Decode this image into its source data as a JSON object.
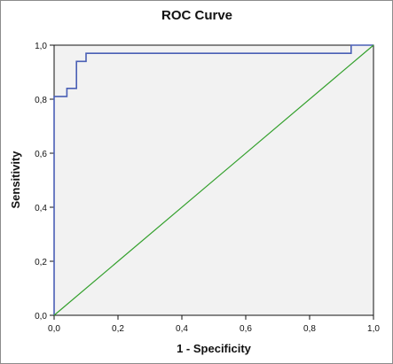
{
  "chart_data": {
    "type": "line",
    "title": "ROC Curve",
    "xlabel": "1 - Specificity",
    "ylabel": "Sensitivity",
    "xlim": [
      0.0,
      1.0
    ],
    "ylim": [
      0.0,
      1.0
    ],
    "x_ticks": [
      "0,0",
      "0,2",
      "0,4",
      "0,6",
      "0,8",
      "1,0"
    ],
    "y_ticks": [
      "0,0",
      "0,2",
      "0,4",
      "0,6",
      "0,8",
      "1,0"
    ],
    "grid": false,
    "plot_background": "#f2f2f2",
    "series": [
      {
        "color": "#4a5fb5",
        "step": true,
        "x": [
          0.0,
          0.0,
          0.04,
          0.04,
          0.07,
          0.07,
          0.1,
          0.1,
          0.93,
          0.93,
          1.0
        ],
        "y": [
          0.0,
          0.81,
          0.81,
          0.84,
          0.84,
          0.94,
          0.94,
          0.97,
          0.97,
          1.0,
          1.0
        ]
      },
      {
        "color": "#33a02c",
        "step": false,
        "x": [
          0.0,
          1.0
        ],
        "y": [
          0.0,
          1.0
        ]
      }
    ]
  }
}
